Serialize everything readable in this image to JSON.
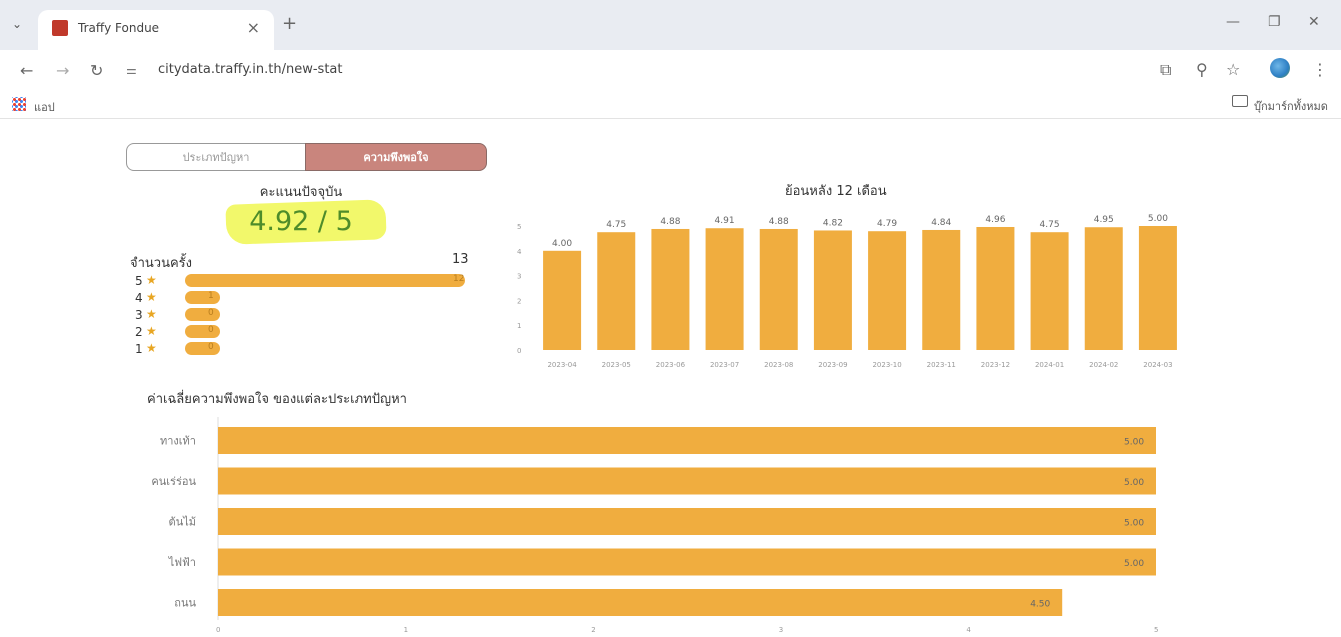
{
  "browser": {
    "tab_title": "Traffy Fondue",
    "url": "citydata.traffy.in.th/new-stat",
    "apps_label": "แอป",
    "bookmarks_label": "บุ๊กมาร์กทั้งหมด"
  },
  "segments": {
    "inactive": "ประเภทปัญหา",
    "active": "ความพึงพอใจ"
  },
  "current": {
    "title": "คะแนนปัจจุบัน",
    "score": "4.92 / 5"
  },
  "counts": {
    "label": "จำนวนครั้ง",
    "total": "13",
    "ratings": [
      {
        "star": "5",
        "count": 12
      },
      {
        "star": "4",
        "count": 1
      },
      {
        "star": "3",
        "count": 0
      },
      {
        "star": "2",
        "count": 0
      },
      {
        "star": "1",
        "count": 0
      }
    ]
  },
  "colors": {
    "bar": "#f0ad3f",
    "score": "#4e8c2a",
    "active_segment": "#c9857d",
    "highlight": "#f2f86b"
  },
  "chart_data": [
    {
      "type": "bar",
      "title": "ย้อนหลัง 12 เดือน",
      "categories": [
        "2023-04",
        "2023-05",
        "2023-06",
        "2023-07",
        "2023-08",
        "2023-09",
        "2023-10",
        "2023-11",
        "2023-12",
        "2024-01",
        "2024-02",
        "2024-03"
      ],
      "values": [
        4.0,
        4.75,
        4.88,
        4.91,
        4.88,
        4.82,
        4.79,
        4.84,
        4.96,
        4.75,
        4.95,
        5.0
      ],
      "value_labels": [
        "4.00",
        "4.75",
        "4.88",
        "4.91",
        "4.88",
        "4.82",
        "4.79",
        "4.84",
        "4.96",
        "4.75",
        "4.95",
        "5.00"
      ],
      "yticks": [
        "0",
        "1",
        "2",
        "3",
        "4",
        "5"
      ],
      "ylim": [
        0,
        5
      ]
    },
    {
      "type": "bar",
      "orientation": "horizontal",
      "title": "ค่าเฉลี่ยความพึงพอใจ ของแต่ละประเภทปัญหา",
      "categories": [
        "ทางเท้า",
        "คนเร่ร่อน",
        "ต้นไม้",
        "ไฟฟ้า",
        "ถนน"
      ],
      "values": [
        5.0,
        5.0,
        5.0,
        5.0,
        4.5
      ],
      "value_labels": [
        "5.00",
        "5.00",
        "5.00",
        "5.00",
        "4.50"
      ],
      "xticks": [
        "0",
        "1",
        "2",
        "3",
        "4",
        "5"
      ],
      "xlim": [
        0,
        5
      ]
    }
  ]
}
